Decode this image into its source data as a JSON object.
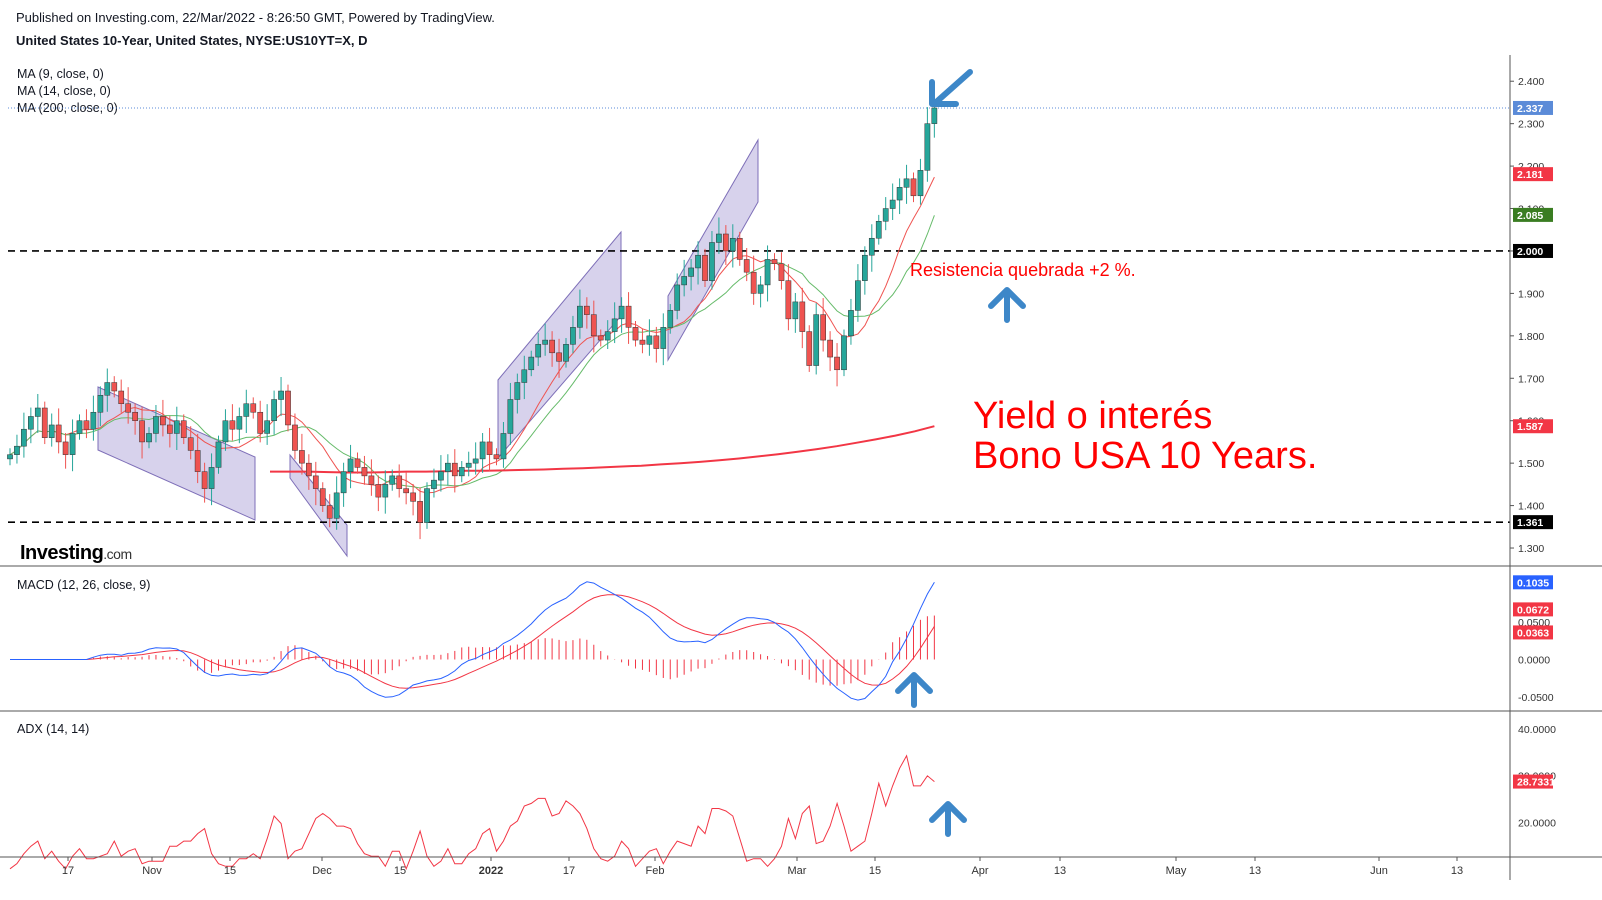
{
  "header": {
    "published": "Published on Investing.com, 22/Mar/2022 - 8:26:50 GMT, Powered by TradingView.",
    "symbol": "United States 10-Year, United States, NYSE:US10YT=X, D"
  },
  "legend": {
    "ma9": "MA (9, close, 0)",
    "ma14": "MA (14, close, 0)",
    "ma200": "MA (200, close, 0)",
    "macd": "MACD (12, 26, close, 9)",
    "adx": "ADX (14, 14)"
  },
  "logo": {
    "main": "Investing",
    "suffix": ".com"
  },
  "annotations": {
    "resistance": "Resistencia quebrada  +2 %.",
    "title_line1": "Yield o interés",
    "title_line2": "Bono USA 10 Years."
  },
  "colors": {
    "up": "#26a69a",
    "down": "#ef5350",
    "ma9": "#ef5350",
    "ma14": "#66bb6a",
    "ma200": "#f23645",
    "macd": "#2962ff",
    "signal": "#f23645",
    "annotation": "#ff0000",
    "arrow": "#3d87c8",
    "channel_fill": "#c9c3e6",
    "channel_stroke": "#7e6fb8"
  },
  "chart_data": {
    "type": "candlestick",
    "price_axis": {
      "range": [
        1.26,
        2.45
      ],
      "ticks": [
        "2.400",
        "2.300",
        "2.200",
        "2.100",
        "2.000",
        "1.900",
        "1.800",
        "1.700",
        "1.600",
        "1.500",
        "1.400",
        "1.300"
      ]
    },
    "x_axis": {
      "labels": [
        "17",
        "Nov",
        "15",
        "Dec",
        "15",
        "2022",
        "17",
        "Feb",
        "Mar",
        "15",
        "Apr",
        "13",
        "May",
        "13",
        "Jun",
        "13"
      ]
    },
    "price_labels": [
      {
        "text": "2.337",
        "value": 2.337,
        "color": "#5b8bd8"
      },
      {
        "text": "2.181",
        "value": 2.181,
        "color": "#f23645"
      },
      {
        "text": "2.085",
        "value": 2.085,
        "color": "#3a7d22"
      },
      {
        "text": "2.000",
        "value": 2.0,
        "color": "#000000"
      },
      {
        "text": "1.587",
        "value": 1.587,
        "color": "#f23645"
      },
      {
        "text": "1.361",
        "value": 1.361,
        "color": "#000000"
      }
    ],
    "horizontal_levels": [
      2.0,
      1.361
    ],
    "last_price": 2.337,
    "closes": [
      1.52,
      1.54,
      1.58,
      1.61,
      1.63,
      1.56,
      1.59,
      1.55,
      1.52,
      1.57,
      1.6,
      1.58,
      1.62,
      1.66,
      1.69,
      1.67,
      1.64,
      1.62,
      1.6,
      1.55,
      1.57,
      1.61,
      1.59,
      1.57,
      1.6,
      1.56,
      1.53,
      1.48,
      1.44,
      1.49,
      1.55,
      1.6,
      1.58,
      1.61,
      1.64,
      1.62,
      1.57,
      1.6,
      1.65,
      1.67,
      1.59,
      1.53,
      1.5,
      1.47,
      1.44,
      1.4,
      1.37,
      1.43,
      1.48,
      1.51,
      1.49,
      1.47,
      1.45,
      1.42,
      1.45,
      1.47,
      1.44,
      1.43,
      1.41,
      1.36,
      1.44,
      1.46,
      1.48,
      1.5,
      1.47,
      1.49,
      1.5,
      1.51,
      1.55,
      1.52,
      1.51,
      1.57,
      1.65,
      1.69,
      1.72,
      1.75,
      1.78,
      1.79,
      1.76,
      1.74,
      1.78,
      1.82,
      1.87,
      1.85,
      1.8,
      1.79,
      1.81,
      1.84,
      1.87,
      1.82,
      1.79,
      1.78,
      1.8,
      1.77,
      1.82,
      1.86,
      1.92,
      1.94,
      1.96,
      1.99,
      1.93,
      2.02,
      2.04,
      2.0,
      2.03,
      1.98,
      1.95,
      1.9,
      1.92,
      1.98,
      1.97,
      1.93,
      1.84,
      1.88,
      1.81,
      1.73,
      1.85,
      1.79,
      1.75,
      1.72,
      1.8,
      1.86,
      1.93,
      1.99,
      2.03,
      2.07,
      2.1,
      2.12,
      2.15,
      2.17,
      2.13,
      2.19,
      2.3,
      2.337
    ],
    "ma200": [
      1.48,
      1.48,
      1.48,
      1.479,
      1.478,
      1.478,
      1.479,
      1.48,
      1.48,
      1.481,
      1.482,
      1.482,
      1.483,
      1.484,
      1.485,
      1.487,
      1.488,
      1.49,
      1.492,
      1.494,
      1.497,
      1.5,
      1.503,
      1.507,
      1.511,
      1.516,
      1.521,
      1.527,
      1.533,
      1.54,
      1.548,
      1.556,
      1.565,
      1.575,
      1.587
    ],
    "macd": {
      "axis_ticks": [
        "0.0500",
        "0.0000",
        "-0.0500"
      ],
      "labels": [
        {
          "text": "0.1035",
          "value": 0.1035,
          "color": "#2962ff"
        },
        {
          "text": "0.0672",
          "value": 0.0672,
          "color": "#f23645"
        },
        {
          "text": "0.0363",
          "value": 0.0363,
          "color": "#f23645"
        }
      ]
    },
    "adx": {
      "axis_ticks": [
        "40.0000",
        "30.0000",
        "20.0000"
      ],
      "labels": [
        {
          "text": "28.7331",
          "value": 28.7331,
          "color": "#f23645"
        }
      ]
    }
  }
}
